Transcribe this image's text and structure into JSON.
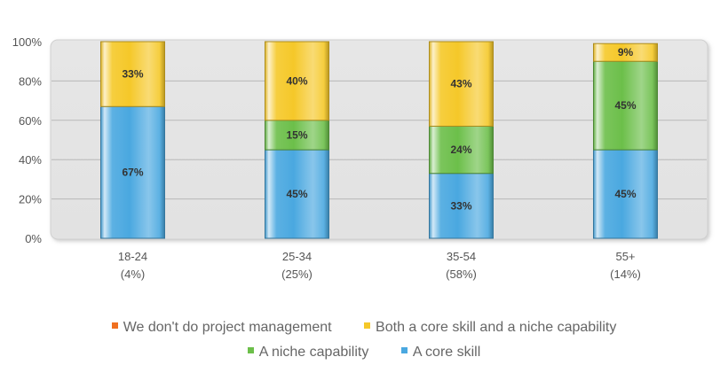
{
  "chart_data": {
    "type": "bar",
    "stacked": true,
    "title": "",
    "xlabel": "",
    "ylabel": "",
    "ylim": [
      0,
      100
    ],
    "y_ticks": [
      "0%",
      "20%",
      "40%",
      "60%",
      "80%",
      "100%"
    ],
    "grid": true,
    "legend_position": "bottom",
    "categories": [
      "18-24",
      "25-34",
      "35-54",
      "55+"
    ],
    "category_sublabels": [
      "(4%)",
      "(25%)",
      "(58%)",
      "(14%)"
    ],
    "series": [
      {
        "name": "A core skill",
        "color": "#4aa8e0",
        "values": [
          67,
          45,
          33,
          45
        ],
        "labels": [
          "67%",
          "45%",
          "33%",
          "45%"
        ]
      },
      {
        "name": "A niche capability",
        "color": "#6cbf4a",
        "values": [
          0,
          15,
          24,
          45
        ],
        "labels": [
          "",
          "15%",
          "24%",
          "45%"
        ]
      },
      {
        "name": "Both a core skill and a niche capability",
        "color": "#f5c829",
        "values": [
          33,
          40,
          43,
          9
        ],
        "labels": [
          "33%",
          "40%",
          "43%",
          "9%"
        ]
      },
      {
        "name": "We don't do project management",
        "color": "#f07020",
        "values": [
          0,
          0,
          0,
          0
        ],
        "labels": [
          "",
          "",
          "",
          ""
        ]
      }
    ]
  },
  "legend": {
    "row1": [
      {
        "label": "We don't do project management",
        "color": "#f07020"
      },
      {
        "label": "Both a core skill and a niche capability",
        "color": "#f5c829"
      }
    ],
    "row2": [
      {
        "label": "A niche capability",
        "color": "#6cbf4a"
      },
      {
        "label": "A core skill",
        "color": "#4aa8e0"
      }
    ]
  }
}
